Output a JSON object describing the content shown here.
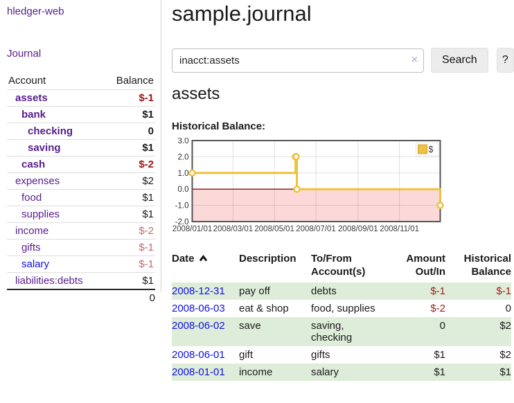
{
  "sidebar": {
    "app_title": "hledger-web",
    "journal_link": "Journal",
    "accounts": {
      "header": {
        "account": "Account",
        "balance": "Balance"
      },
      "rows": [
        {
          "name": "assets",
          "balance": "$-1",
          "level": 1,
          "bold": true,
          "name_tone": "purple",
          "balance_tone": "neg-strong"
        },
        {
          "name": "bank",
          "balance": "$1",
          "level": 2,
          "bold": true,
          "name_tone": "purple",
          "balance_tone": "normal"
        },
        {
          "name": "checking",
          "balance": "0",
          "level": 3,
          "bold": true,
          "name_tone": "purple",
          "balance_tone": "normal"
        },
        {
          "name": "saving",
          "balance": "$1",
          "level": 3,
          "bold": true,
          "name_tone": "purple",
          "balance_tone": "normal"
        },
        {
          "name": "cash",
          "balance": "$-2",
          "level": 2,
          "bold": true,
          "name_tone": "purple",
          "balance_tone": "neg-strong"
        },
        {
          "name": "expenses",
          "balance": "$2",
          "level": 1,
          "bold": false,
          "name_tone": "purple",
          "balance_tone": "normal"
        },
        {
          "name": "food",
          "balance": "$1",
          "level": 2,
          "bold": false,
          "name_tone": "purple",
          "balance_tone": "normal"
        },
        {
          "name": "supplies",
          "balance": "$1",
          "level": 2,
          "bold": false,
          "name_tone": "purple",
          "balance_tone": "normal"
        },
        {
          "name": "income",
          "balance": "$-2",
          "level": 1,
          "bold": false,
          "name_tone": "purple",
          "balance_tone": "neg-soft"
        },
        {
          "name": "gifts",
          "balance": "$-1",
          "level": 2,
          "bold": false,
          "name_tone": "purple",
          "balance_tone": "neg-soft"
        },
        {
          "name": "salary",
          "balance": "$-1",
          "level": 2,
          "bold": false,
          "name_tone": "blue",
          "balance_tone": "neg-soft"
        },
        {
          "name": "liabilities:debts",
          "balance": "$1",
          "level": 1,
          "bold": false,
          "name_tone": "purple",
          "balance_tone": "normal"
        }
      ],
      "total": "0"
    }
  },
  "main": {
    "title": "sample.journal",
    "search": {
      "value": "inacct:assets",
      "clear_icon": "×",
      "search_button": "Search",
      "help_button": "?"
    },
    "account_heading": "assets",
    "chart_title": "Historical Balance:"
  },
  "chart_data": {
    "type": "line",
    "step": true,
    "title": "Historical Balance",
    "series": [
      {
        "name": "$",
        "color": "#edc240",
        "points": [
          [
            "2008-01-01",
            1
          ],
          [
            "2008-06-01",
            2
          ],
          [
            "2008-06-02",
            2
          ],
          [
            "2008-06-03",
            0
          ],
          [
            "2008-12-31",
            -1
          ]
        ]
      }
    ],
    "x_range": [
      "2008-01-01",
      "2008-12-31"
    ],
    "x_tick_labels": [
      "2008/01/01",
      "2008/03/01",
      "2008/05/01",
      "2008/07/01",
      "2008/09/01",
      "2008/11/01"
    ],
    "y_tick_values": [
      3,
      2,
      1,
      0,
      -1,
      -2
    ],
    "y_tick_labels": [
      "3.0",
      "2.0",
      "1.0",
      "0.0",
      "-1.0",
      "-2.0"
    ],
    "ylim": [
      -2,
      3
    ],
    "grid": true,
    "legend": {
      "label": "$",
      "position": "top-right"
    },
    "negative_fill": "#fbd9d9",
    "zero_line_color": "#8f0d0d"
  },
  "register": {
    "headers": {
      "date": "Date",
      "description": "Description",
      "accounts_line1": "To/From",
      "accounts_line2": "Account(s)",
      "amount_line1": "Amount",
      "amount_line2": "Out/In",
      "balance_line1": "Historical",
      "balance_line2": "Balance"
    },
    "sort_icon": "chevron-up",
    "rows": [
      {
        "date": "2008-12-31",
        "description": "pay off",
        "accounts": "debts",
        "amount": "$-1",
        "amount_negative": true,
        "balance": "$-1",
        "balance_negative": true,
        "shaded": true
      },
      {
        "date": "2008-06-03",
        "description": "eat & shop",
        "accounts": "food, supplies",
        "amount": "$-2",
        "amount_negative": true,
        "balance": "0",
        "balance_negative": false,
        "shaded": false
      },
      {
        "date": "2008-06-02",
        "description": "save",
        "accounts": "saving, checking",
        "amount": "0",
        "amount_negative": false,
        "balance": "$2",
        "balance_negative": false,
        "shaded": true
      },
      {
        "date": "2008-06-01",
        "description": "gift",
        "accounts": "gifts",
        "amount": "$1",
        "amount_negative": false,
        "balance": "$2",
        "balance_negative": false,
        "shaded": false
      },
      {
        "date": "2008-01-01",
        "description": "income",
        "accounts": "salary",
        "amount": "$1",
        "amount_negative": false,
        "balance": "$1",
        "balance_negative": false,
        "shaded": true
      }
    ]
  },
  "colors": {
    "link_purple": "#571c8d",
    "link_blue": "#1111dd",
    "negative_strong": "#a01313",
    "negative_soft": "#c36a6a",
    "register_negative": "#9d1c1c",
    "row_green": "#deedd9",
    "series_yellow": "#edc240",
    "plot_border": "#545454",
    "grid_line": "#e3e3e3"
  }
}
